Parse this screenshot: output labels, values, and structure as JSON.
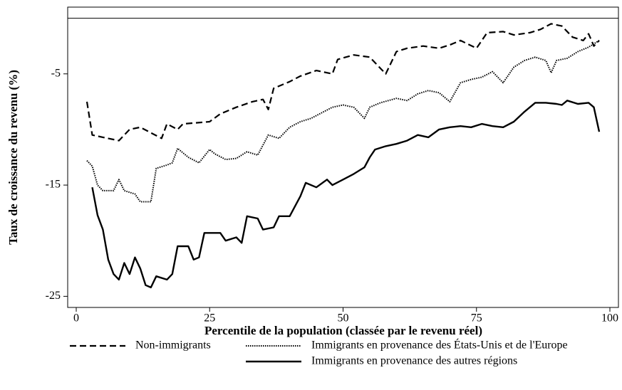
{
  "chart_data": {
    "type": "line",
    "x_label": "Percentile de la population (classée par le revenu réel)",
    "y_label": "Taux de croissance du revenu (%)",
    "xlim": [
      -1.6,
      101.6
    ],
    "ylim": [
      -26,
      1
    ],
    "xticks": [
      0,
      25,
      50,
      75,
      100
    ],
    "yticks": [
      -5,
      -15,
      -25
    ],
    "reference_line": 0,
    "series": [
      {
        "name": "Non-immigrants",
        "color": "#000000",
        "line_style": "dashed",
        "x": [
          2,
          3,
          5,
          8,
          10,
          12,
          14,
          16,
          17,
          19,
          20,
          25,
          27,
          30,
          33,
          35,
          36,
          37,
          40,
          42,
          45,
          48,
          49,
          52,
          55,
          57,
          58,
          60,
          62,
          65,
          68,
          70,
          72,
          75,
          77,
          80,
          82,
          85,
          87,
          89,
          91,
          93,
          95,
          96,
          97,
          98
        ],
        "values": [
          -7.5,
          -10.5,
          -10.7,
          -11,
          -10,
          -9.8,
          -10.3,
          -10.8,
          -9.5,
          -10,
          -9.5,
          -9.3,
          -8.6,
          -8,
          -7.5,
          -7.3,
          -8.2,
          -6.3,
          -5.7,
          -5.2,
          -4.7,
          -5,
          -3.7,
          -3.3,
          -3.5,
          -4.5,
          -5,
          -3,
          -2.7,
          -2.5,
          -2.7,
          -2.4,
          -2,
          -2.7,
          -1.3,
          -1.2,
          -1.5,
          -1.3,
          -1,
          -0.5,
          -0.7,
          -1.7,
          -2,
          -1.4,
          -2.5,
          -2
        ]
      },
      {
        "name": "Immigrants en provenance des États-Unis et de l'Europe",
        "color": "#000000",
        "line_style": "dotted",
        "x": [
          2,
          3,
          4,
          5,
          7,
          8,
          9,
          11,
          12,
          14,
          15,
          17,
          18,
          19,
          21,
          23,
          25,
          26,
          28,
          30,
          32,
          34,
          36,
          38,
          40,
          42,
          44,
          46,
          48,
          50,
          52,
          54,
          55,
          57,
          60,
          62,
          64,
          66,
          68,
          70,
          72,
          74,
          76,
          78,
          80,
          82,
          84,
          86,
          88,
          89,
          90,
          92,
          94,
          96,
          98
        ],
        "values": [
          -12.8,
          -13.3,
          -15,
          -15.5,
          -15.5,
          -14.5,
          -15.5,
          -15.8,
          -16.5,
          -16.5,
          -13.5,
          -13.2,
          -13,
          -11.7,
          -12.5,
          -13,
          -11.8,
          -12.2,
          -12.7,
          -12.6,
          -12,
          -12.3,
          -10.5,
          -10.8,
          -9.8,
          -9.3,
          -9,
          -8.5,
          -8,
          -7.8,
          -8,
          -9,
          -8,
          -7.6,
          -7.2,
          -7.4,
          -6.8,
          -6.5,
          -6.7,
          -7.5,
          -5.8,
          -5.5,
          -5.3,
          -4.8,
          -5.8,
          -4.4,
          -3.8,
          -3.5,
          -3.8,
          -4.9,
          -3.8,
          -3.6,
          -3,
          -2.6,
          -2
        ]
      },
      {
        "name": "Immigrants en provenance des autres régions",
        "color": "#000000",
        "line_style": "solid",
        "x": [
          3,
          4,
          5,
          6,
          7,
          8,
          9,
          10,
          11,
          12,
          13,
          14,
          15,
          17,
          18,
          19,
          21,
          22,
          23,
          24,
          27,
          28,
          30,
          31,
          32,
          34,
          35,
          37,
          38,
          40,
          42,
          43,
          45,
          47,
          48,
          50,
          52,
          54,
          55,
          56,
          58,
          60,
          62,
          64,
          66,
          68,
          70,
          72,
          74,
          76,
          78,
          80,
          82,
          84,
          86,
          88,
          90,
          91,
          92,
          94,
          96,
          97,
          98
        ],
        "values": [
          -15.2,
          -17.7,
          -19,
          -21.7,
          -23,
          -23.5,
          -22,
          -23,
          -21.5,
          -22.5,
          -24,
          -24.2,
          -23.2,
          -23.5,
          -23,
          -20.5,
          -20.5,
          -21.7,
          -21.5,
          -19.3,
          -19.3,
          -20,
          -19.7,
          -20.2,
          -17.8,
          -18,
          -19,
          -18.8,
          -17.8,
          -17.8,
          -16,
          -14.8,
          -15.2,
          -14.5,
          -15,
          -14.5,
          -14,
          -13.4,
          -12.5,
          -11.8,
          -11.5,
          -11.3,
          -11,
          -10.5,
          -10.7,
          -10,
          -9.8,
          -9.7,
          -9.8,
          -9.5,
          -9.7,
          -9.8,
          -9.3,
          -8.4,
          -7.6,
          -7.6,
          -7.7,
          -7.8,
          -7.4,
          -7.7,
          -7.6,
          -8,
          -10.2
        ]
      }
    ]
  }
}
